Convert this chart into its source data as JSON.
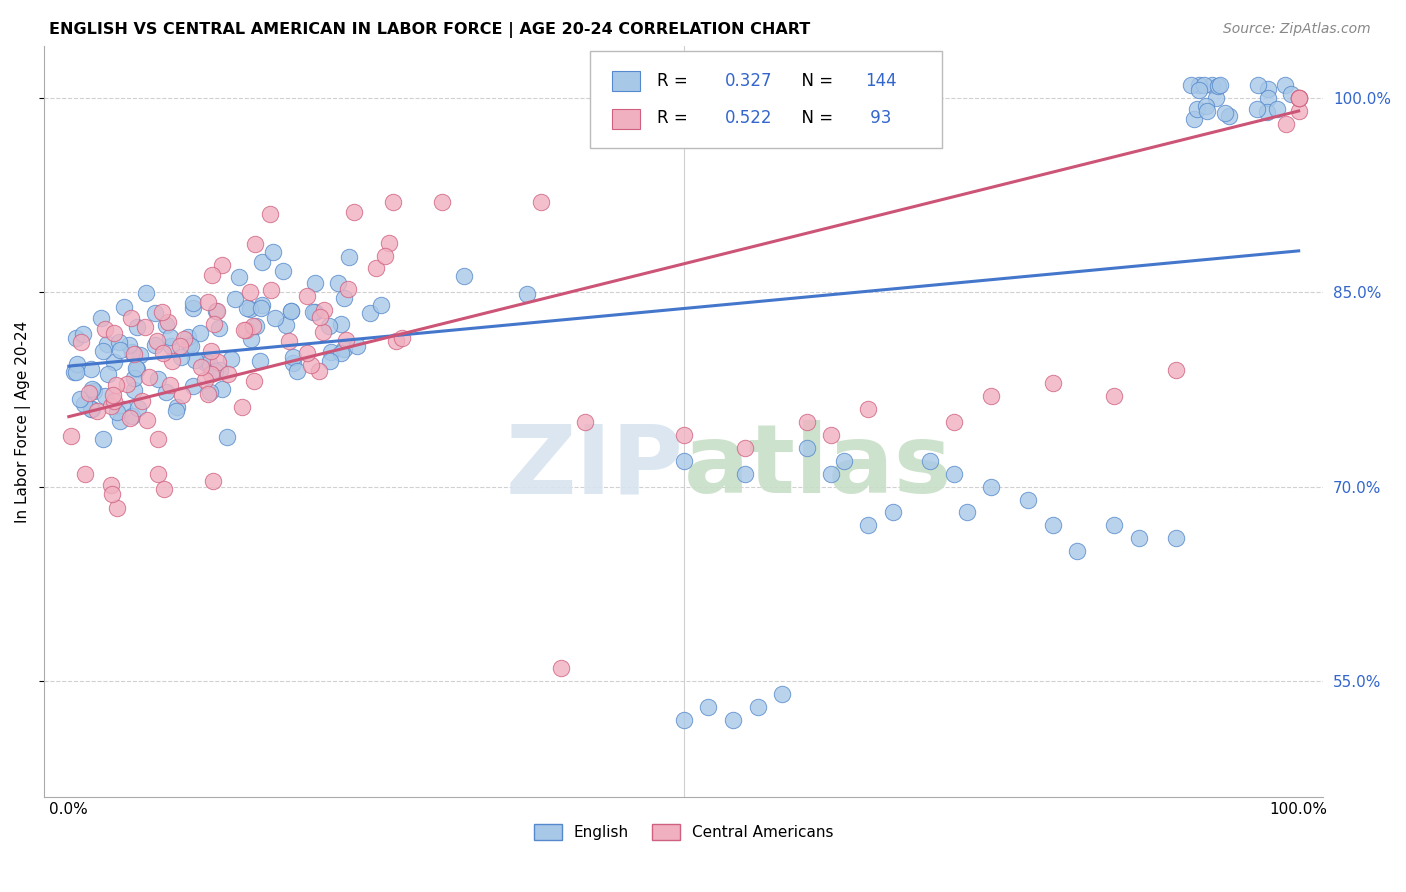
{
  "title": "ENGLISH VS CENTRAL AMERICAN IN LABOR FORCE | AGE 20-24 CORRELATION CHART",
  "source": "Source: ZipAtlas.com",
  "ylabel": "In Labor Force | Age 20-24",
  "xlim": [
    -0.02,
    1.02
  ],
  "ylim": [
    0.46,
    1.04
  ],
  "y_ticks_right": [
    0.55,
    0.7,
    0.85,
    1.0
  ],
  "y_tick_labels_right": [
    "55.0%",
    "70.0%",
    "85.0%",
    "100.0%"
  ],
  "english_R": 0.327,
  "english_N": 144,
  "central_R": 0.522,
  "central_N": 93,
  "english_fill": "#a8c8e8",
  "english_edge": "#5588cc",
  "central_fill": "#f0b0c0",
  "central_edge": "#d06080",
  "english_line": "#4477cc",
  "central_line": "#cc5577",
  "eng_line_start_y": 0.793,
  "eng_line_end_y": 0.882,
  "cen_line_start_y": 0.754,
  "cen_line_end_y": 0.99,
  "watermark_zip_color": "#d8e4f0",
  "watermark_atlas_color": "#c8dfc8",
  "grid_color": "#d0d0d0",
  "grid_style": "--"
}
